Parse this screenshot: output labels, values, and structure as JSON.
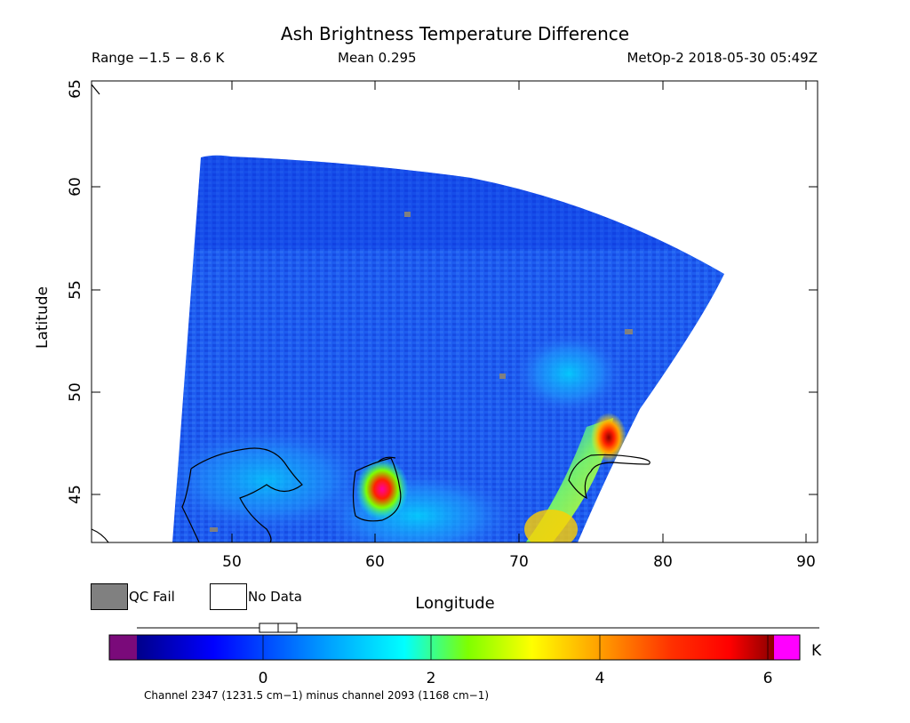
{
  "header": {
    "title": "Ash Brightness Temperature Difference",
    "range": "Range −1.5 − 8.6 K",
    "mean": "Mean 0.295",
    "satellite_time": "MetOp-2 2018-05-30 05:49Z"
  },
  "axes": {
    "xlabel": "Longitude",
    "ylabel": "Latitude",
    "xticks": [
      "50",
      "60",
      "70",
      "80",
      "90"
    ],
    "yticks": [
      "45",
      "50",
      "55",
      "60",
      "65"
    ]
  },
  "legend": {
    "qc_fail": "QC Fail",
    "no_data": "No Data",
    "qc_fail_color": "#808080",
    "no_data_color": "#ffffff"
  },
  "colorbar": {
    "ticks": [
      "0",
      "2",
      "4",
      "6"
    ],
    "unit": "K",
    "caption": "Channel 2347 (1231.5 cm−1) minus channel 2093 (1168 cm−1)",
    "under_color": "#7a0a7a",
    "over_color": "#ff00ff",
    "colors": [
      "#00008b",
      "#0000ff",
      "#00bfff",
      "#00ffff",
      "#7fff00",
      "#ffff00",
      "#ffa500",
      "#ff4500",
      "#ff0000",
      "#8b0000"
    ]
  },
  "chart_data": {
    "type": "heatmap",
    "title": "Ash Brightness Temperature Difference",
    "xlabel": "Longitude",
    "ylabel": "Latitude",
    "xlim": [
      40,
      91
    ],
    "ylim": [
      42.6,
      65
    ],
    "value_range_K": [
      -1.5,
      8.6
    ],
    "mean_K": 0.295,
    "colorbar_range_K": [
      -1.5,
      6.5
    ],
    "hotspots": [
      {
        "lon": 76.5,
        "lat": 47.8,
        "value_K": 6.0
      },
      {
        "lon": 60.5,
        "lat": 45.0,
        "value_K": 6.5
      },
      {
        "lon": 73,
        "lat": 43.5,
        "value_K": 3.5
      }
    ]
  }
}
